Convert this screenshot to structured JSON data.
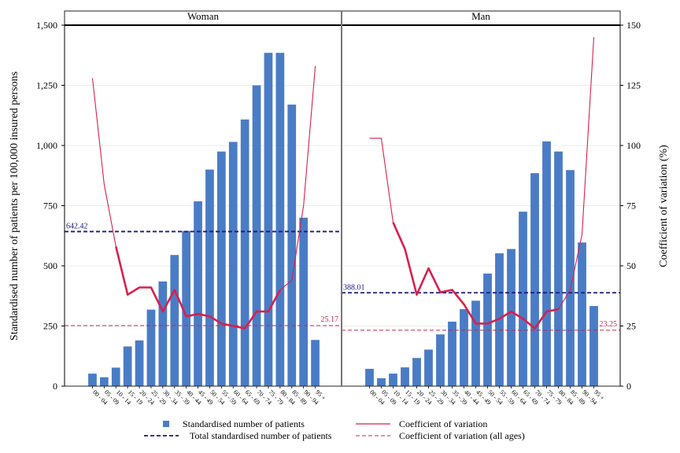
{
  "chart_data": {
    "type": "bar",
    "ylabel": "Standardised number of patients per 100,000 insured persons",
    "y2label": "Coefficient of variation (%)",
    "ylim": [
      0,
      1500
    ],
    "y2lim": [
      0,
      150
    ],
    "yticks": [
      "0",
      "250",
      "500",
      "750",
      "1,000",
      "1,250",
      "1,500"
    ],
    "y2ticks": [
      "0",
      "25",
      "50",
      "75",
      "100",
      "125",
      "150"
    ],
    "categories": [
      "00 - 04",
      "05 - 09",
      "10 - 14",
      "15 - 19",
      "20 - 24",
      "25 - 29",
      "30 - 34",
      "35 - 39",
      "40 - 44",
      "45 - 49",
      "50 - 54",
      "55 - 59",
      "60 - 64",
      "65 - 69",
      "70 - 74",
      "75 - 79",
      "80 - 84",
      "85 - 89",
      "90 - 94",
      "95 +"
    ],
    "grid": true,
    "legend_position": "bottom",
    "panels": [
      {
        "label": "Woman",
        "bars": [
          52,
          37,
          77,
          165,
          190,
          318,
          435,
          545,
          645,
          768,
          900,
          975,
          1015,
          1108,
          1250,
          1385,
          1385,
          1170,
          700,
          192
        ],
        "cv": [
          128,
          84,
          58,
          38,
          41,
          41,
          31,
          40,
          29,
          30,
          29,
          26,
          25,
          24,
          31,
          31,
          40,
          44,
          75,
          133
        ],
        "total": 642.42,
        "total_label": "642.42",
        "cv_all": 25.17,
        "cv_all_label": "25.17"
      },
      {
        "label": "Man",
        "bars": [
          72,
          33,
          52,
          78,
          117,
          152,
          215,
          268,
          320,
          355,
          468,
          552,
          570,
          725,
          885,
          1017,
          975,
          898,
          597,
          333
        ],
        "cv": [
          103,
          103,
          68,
          57,
          38,
          49,
          39,
          40,
          34,
          26,
          26,
          28,
          31,
          28,
          24,
          31,
          32,
          40,
          63,
          145
        ],
        "total": 388.01,
        "total_label": "388.01",
        "cv_all": 23.25,
        "cv_all_label": "23.25"
      }
    ],
    "legend": {
      "bars": "Standardised number of patients",
      "cv": "Coefficient of variation",
      "total": "Total standardised number of patients",
      "cv_all": "Coefficient of variation (all ages)"
    },
    "colors": {
      "bar": "#4a7cc5",
      "cv": "#d8204c",
      "total": "#1a1a7a",
      "cv_all": "#c8264a",
      "grid": "#ececec"
    }
  }
}
